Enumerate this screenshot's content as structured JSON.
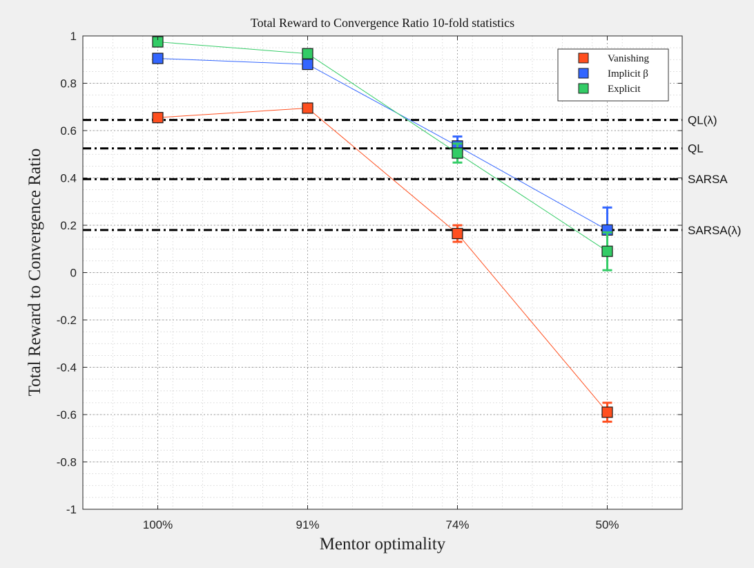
{
  "chart_data": {
    "type": "line",
    "title": "Total Reward to Convergence Ratio 10-fold statistics",
    "xlabel": "Mentor optimality",
    "ylabel": "Total Reward to Convergence Ratio",
    "categories": [
      "100%",
      "91%",
      "74%",
      "50%"
    ],
    "ylim": [
      -1,
      1
    ],
    "yticks": [
      "-1",
      "-0.8",
      "-0.6",
      "-0.4",
      "-0.2",
      "0",
      "0.2",
      "0.4",
      "0.6",
      "0.8",
      "1"
    ],
    "grid": true,
    "minor_grid": true,
    "legend_position": "top-right",
    "series": [
      {
        "name": "Vanishing",
        "color": "#ff4f1f",
        "values": [
          0.655,
          0.695,
          0.165,
          -0.59
        ],
        "error": [
          null,
          null,
          0.035,
          0.04
        ]
      },
      {
        "name": "Implicit β",
        "color": "#3366ff",
        "values": [
          0.905,
          0.88,
          0.535,
          0.18
        ],
        "error": [
          null,
          null,
          0.04,
          0.095
        ]
      },
      {
        "name": "Explicit",
        "color": "#33cc66",
        "values": [
          0.975,
          0.925,
          0.505,
          0.09
        ],
        "error": [
          null,
          null,
          0.04,
          0.08
        ]
      }
    ],
    "reference_lines": [
      {
        "label": "QL(λ)",
        "value": 0.645
      },
      {
        "label": "QL",
        "value": 0.525
      },
      {
        "label": "SARSA",
        "value": 0.395
      },
      {
        "label": "SARSA(λ)",
        "value": 0.18
      }
    ]
  }
}
